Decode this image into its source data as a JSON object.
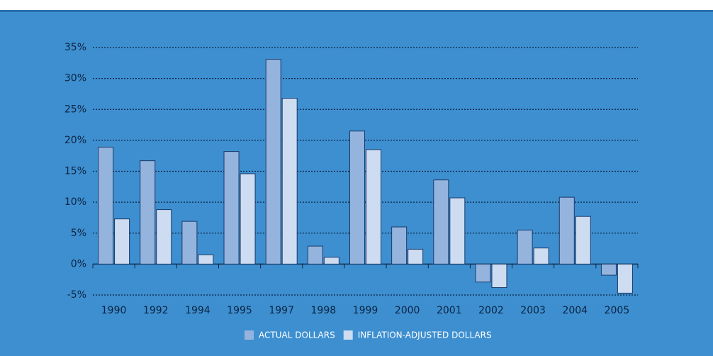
{
  "chart_data": {
    "type": "bar",
    "categories": [
      "1990",
      "1992",
      "1994",
      "1995",
      "1997",
      "1998",
      "1999",
      "2000",
      "2001",
      "2002",
      "2003",
      "2004",
      "2005"
    ],
    "series": [
      {
        "name": "ACTUAL DOLLARS",
        "color": "#94b4de",
        "values": [
          18.9,
          16.7,
          6.9,
          18.2,
          33.1,
          2.9,
          21.5,
          6.0,
          13.6,
          -2.9,
          5.5,
          10.8,
          -1.8
        ]
      },
      {
        "name": "INFLATION-ADJUSTED DOLLARS",
        "color": "#cddcf1",
        "values": [
          7.3,
          8.8,
          1.5,
          14.6,
          26.8,
          1.1,
          18.5,
          2.4,
          10.7,
          -3.8,
          2.6,
          7.7,
          -4.7
        ]
      }
    ],
    "ylim": [
      -5,
      35
    ],
    "yticks": [
      {
        "value": -5,
        "label": "-5%"
      },
      {
        "value": 0,
        "label": "0%"
      },
      {
        "value": 5,
        "label": "5%"
      },
      {
        "value": 10,
        "label": "10%"
      },
      {
        "value": 15,
        "label": "15%"
      },
      {
        "value": 20,
        "label": "20%"
      },
      {
        "value": 25,
        "label": "25%"
      },
      {
        "value": 30,
        "label": "30%"
      },
      {
        "value": 35,
        "label": "35%"
      }
    ],
    "grid": true
  }
}
